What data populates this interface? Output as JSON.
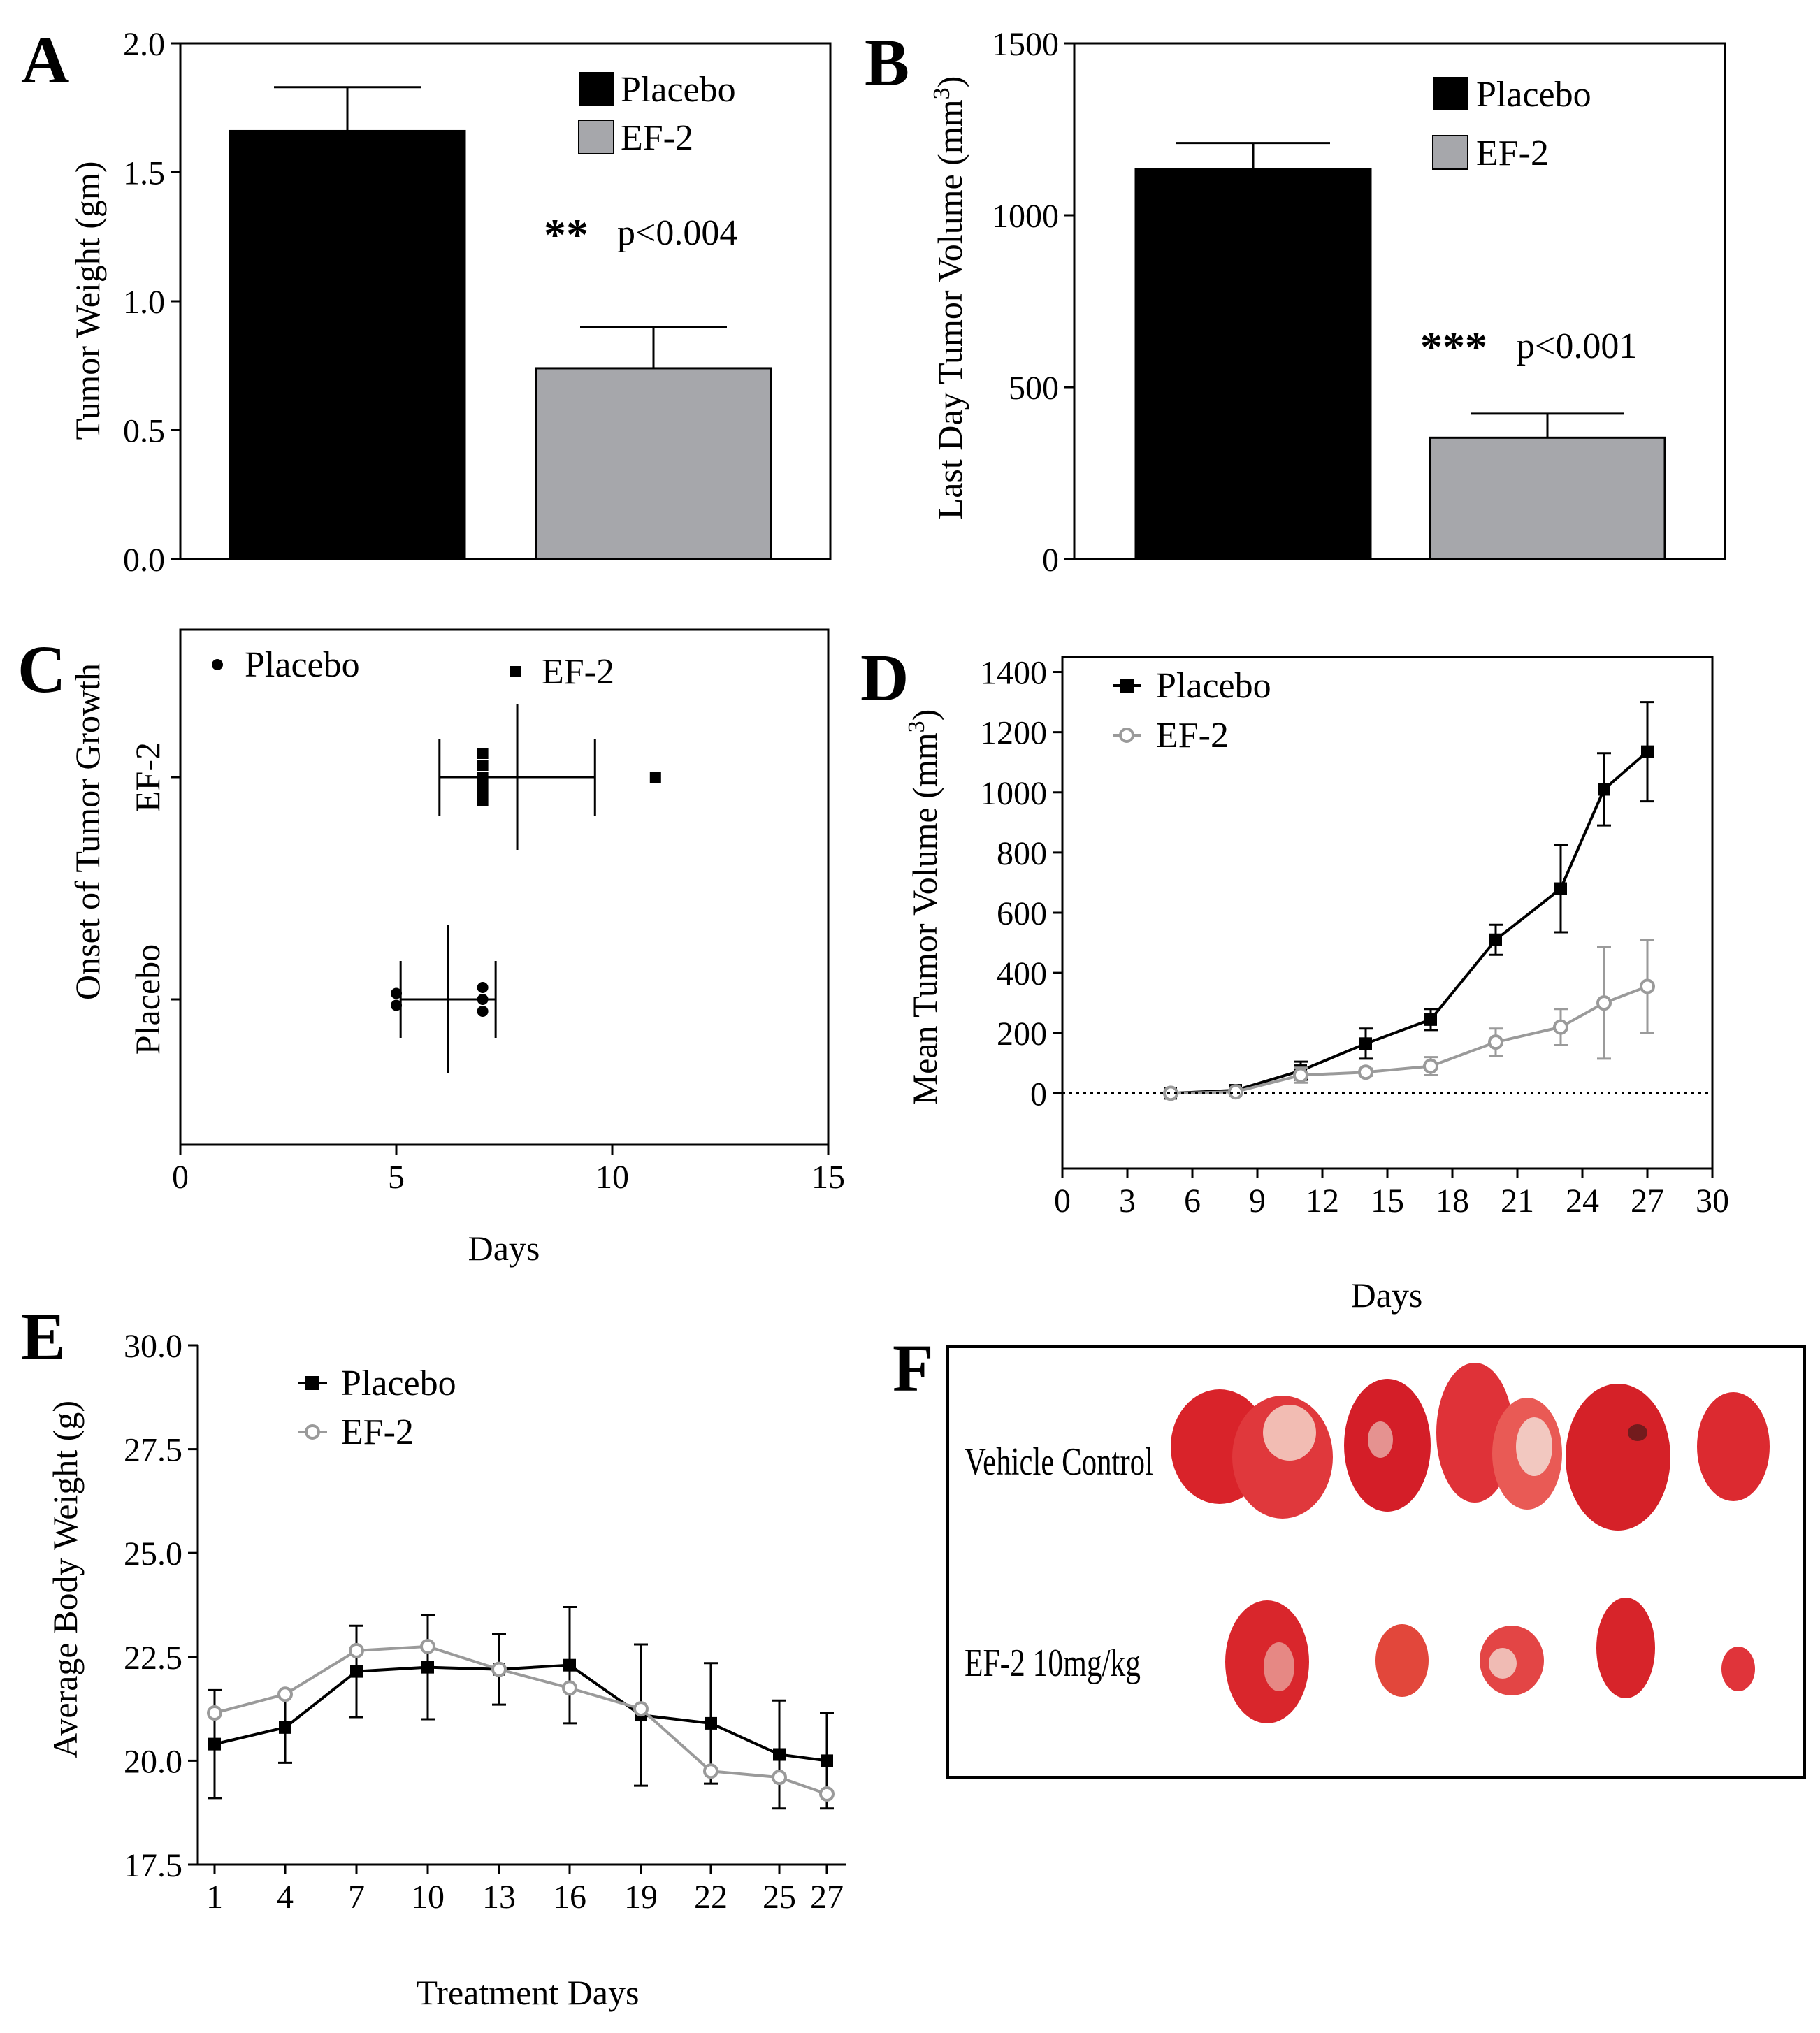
{
  "colors": {
    "placebo": "#000000",
    "ef2": "#a6a7ab",
    "ef2_line": "#9a9a9a",
    "axis": "#000000",
    "tissue": "#d9232a"
  },
  "panels": {
    "A": {
      "label": "A",
      "chart_data": {
        "type": "bar",
        "categories": [
          "Placebo",
          "EF-2"
        ],
        "values": [
          1.66,
          0.74
        ],
        "errors": [
          0.17,
          0.16
        ],
        "ylabel": "Tumor Weight (gm)",
        "ylim": [
          0,
          2.0
        ],
        "yticks": [
          "0.0",
          "0.5",
          "1.0",
          "1.5",
          "2.0"
        ],
        "ytick_values": [
          0,
          0.5,
          1.0,
          1.5,
          2.0
        ],
        "legend": [
          "Placebo",
          "EF-2"
        ],
        "annotation_stars": "**",
        "annotation_p": "p<0.004"
      }
    },
    "B": {
      "label": "B",
      "chart_data": {
        "type": "bar",
        "categories": [
          "Placebo",
          "EF-2"
        ],
        "values": [
          1135,
          353
        ],
        "errors": [
          75,
          70
        ],
        "ylabel_main": "Last Day Tumor Volume (mm",
        "ylabel_sup": "3",
        "ylabel_close": ")",
        "ylim": [
          0,
          1500
        ],
        "yticks": [
          "0",
          "500",
          "1000",
          "1500"
        ],
        "ytick_values": [
          0,
          500,
          1000,
          1500
        ],
        "legend": [
          "Placebo",
          "EF-2"
        ],
        "annotation_stars": "***",
        "annotation_p": "p<0.001"
      }
    },
    "C": {
      "label": "C",
      "chart_data": {
        "type": "scatter",
        "xlabel": "Days",
        "ylabel": "Onset of Tumor Growth",
        "xlim": [
          0,
          15
        ],
        "xticks": [
          "0",
          "5",
          "10",
          "15"
        ],
        "xtick_values": [
          0,
          5,
          10,
          15
        ],
        "categories": [
          "Placebo",
          "EF-2"
        ],
        "legend": [
          "Placebo",
          "EF-2"
        ],
        "groups": [
          {
            "name": "Placebo",
            "points": [
              5,
              5,
              7,
              7,
              7
            ],
            "mean": 6.2,
            "sd": 1.1
          },
          {
            "name": "EF-2",
            "points": [
              7,
              7,
              7,
              7,
              7,
              11
            ],
            "mean": 7.8,
            "sd": 1.8
          }
        ]
      }
    },
    "D": {
      "label": "D",
      "chart_data": {
        "type": "line",
        "xlabel": "Days",
        "ylabel_main": "Mean Tumor Volume (mm",
        "ylabel_sup": "3",
        "ylabel_close": ")",
        "xlim": [
          0,
          30
        ],
        "ylim": [
          -250,
          1450
        ],
        "xticks": [
          "0",
          "3",
          "6",
          "9",
          "12",
          "15",
          "18",
          "21",
          "24",
          "27",
          "30"
        ],
        "xtick_values": [
          0,
          3,
          6,
          9,
          12,
          15,
          18,
          21,
          24,
          27,
          30
        ],
        "yticks": [
          "0",
          "200",
          "400",
          "600",
          "800",
          "1000",
          "1200",
          "1400"
        ],
        "ytick_values": [
          0,
          200,
          400,
          600,
          800,
          1000,
          1200,
          1400
        ],
        "x": [
          5,
          8,
          11,
          14,
          17,
          20,
          23,
          25,
          27
        ],
        "series": [
          {
            "name": "Placebo",
            "values": [
              0,
              10,
              75,
              165,
              245,
              510,
              680,
              1010,
              1135
            ],
            "errors": [
              5,
              8,
              30,
              50,
              35,
              50,
              145,
              120,
              165
            ]
          },
          {
            "name": "EF-2",
            "values": [
              0,
              5,
              60,
              70,
              90,
              170,
              220,
              300,
              355
            ],
            "errors": [
              5,
              5,
              25,
              12,
              30,
              45,
              60,
              185,
              155
            ]
          }
        ]
      }
    },
    "E": {
      "label": "E",
      "chart_data": {
        "type": "line",
        "xlabel": "Treatment Days",
        "ylabel": "Average Body Weight (g)",
        "ylim": [
          17.5,
          30.0
        ],
        "yticks": [
          "17.5",
          "20.0",
          "22.5",
          "25.0",
          "27.5",
          "30.0"
        ],
        "ytick_values": [
          17.5,
          20.0,
          22.5,
          25.0,
          27.5,
          30.0
        ],
        "xticks": [
          "1",
          "4",
          "7",
          "10",
          "13",
          "16",
          "19",
          "22",
          "25",
          "27"
        ],
        "x": [
          1,
          4,
          7,
          10,
          13,
          16,
          19,
          22,
          25,
          27
        ],
        "series": [
          {
            "name": "Placebo",
            "values": [
              20.4,
              20.8,
              22.15,
              22.25,
              22.2,
              22.3,
              21.1,
              20.9,
              20.15,
              20.0
            ],
            "errors": [
              1.3,
              0.85,
              1.1,
              1.25,
              0.85,
              1.4,
              1.7,
              1.45,
              1.3,
              1.15
            ]
          },
          {
            "name": "EF-2",
            "values": [
              21.15,
              21.6,
              22.65,
              22.75,
              22.2,
              21.75,
              21.25,
              19.75,
              19.6,
              19.2
            ]
          }
        ]
      }
    },
    "F": {
      "label": "F",
      "photo": {
        "row1": "Vehicle Control",
        "row2": "EF-2 10mg/kg"
      }
    }
  }
}
